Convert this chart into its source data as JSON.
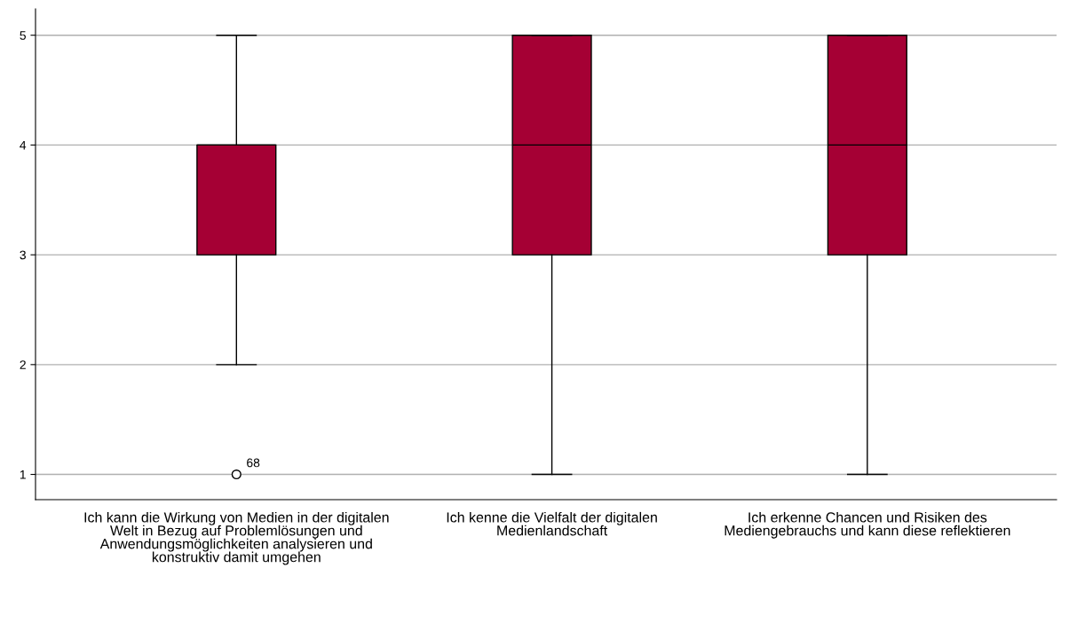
{
  "chart_data": {
    "type": "box",
    "categories": [
      "Ich kann die Wirkung von Medien in der digitalen Welt in Bezug auf Problemlösungen und Anwendungsmöglichkeiten analysieren und konstruktiv damit umgehen",
      "Ich kenne die Vielfalt der digitalen Medienlandschaft",
      "Ich erkenne Chancen und Risiken des Mediengebrauchs und kann diese reflektieren"
    ],
    "boxes": [
      {
        "low": 2,
        "q1": 3,
        "median": 4,
        "q3": 4,
        "high": 5,
        "outliers": [
          1
        ]
      },
      {
        "low": 1,
        "q1": 3,
        "median": 4,
        "q3": 5,
        "high": 5
      },
      {
        "low": 1,
        "q1": 3,
        "median": 4,
        "q3": 5,
        "high": 5
      }
    ],
    "color": "#a50034",
    "annotations": [
      "68"
    ],
    "ylim": [
      0.77,
      5.24
    ],
    "yticks": [
      1,
      2,
      3,
      4,
      5
    ],
    "grid": "y"
  }
}
